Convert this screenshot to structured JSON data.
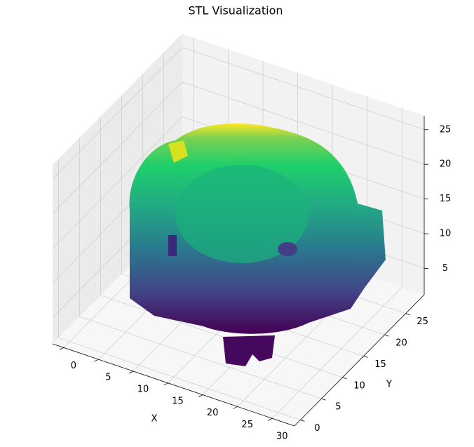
{
  "chart_data": {
    "type": "surface3d",
    "title": "STL Visualization",
    "xlabel": "X",
    "ylabel": "Y",
    "xlim": [
      -1.6,
      33.2
    ],
    "ylim": [
      -1.4,
      29.4
    ],
    "zlim": [
      1.2,
      27
    ],
    "xticks": [
      0,
      5,
      10,
      15,
      20,
      25,
      30
    ],
    "yticks": [
      0,
      5,
      10,
      15,
      20,
      25
    ],
    "zticks": [
      5,
      10,
      15,
      20,
      25
    ],
    "colormap": "viridis",
    "grid": true
  }
}
